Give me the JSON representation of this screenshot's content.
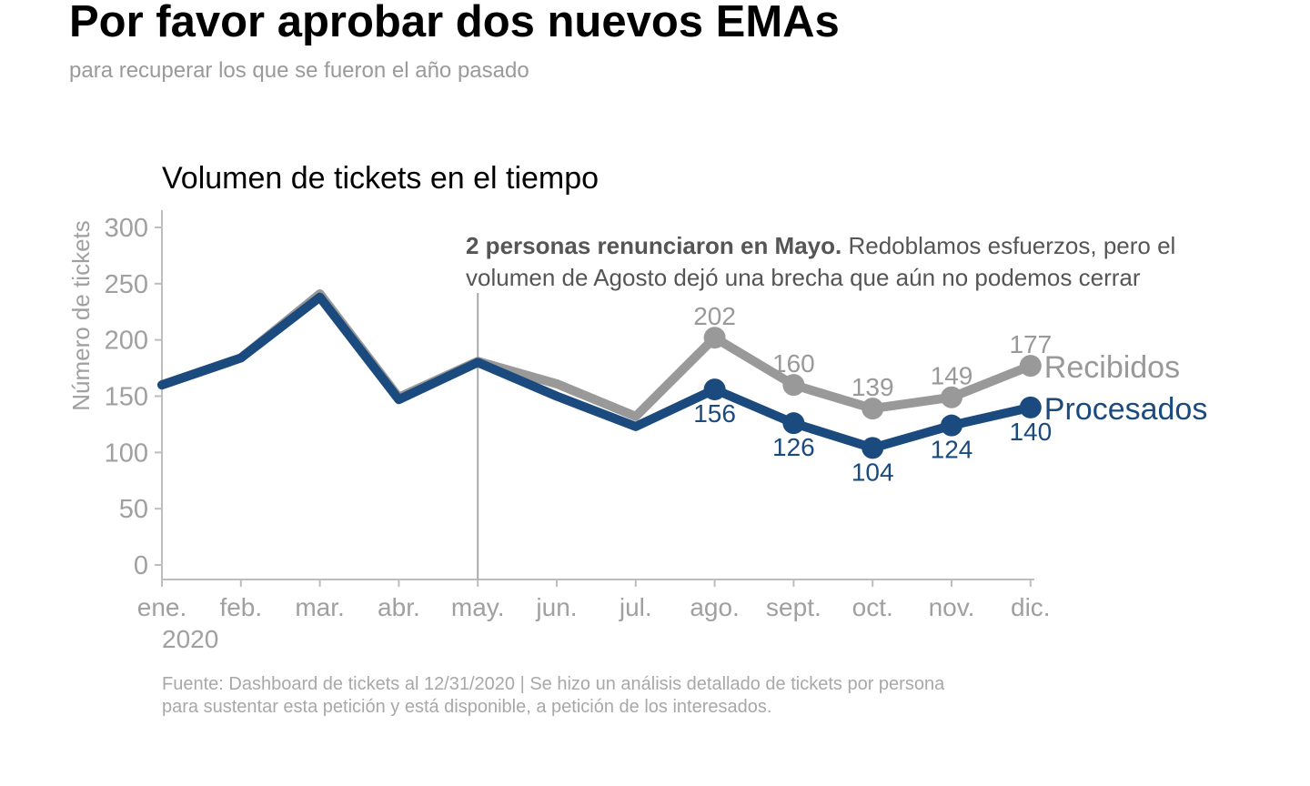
{
  "header": {
    "title": "Por favor aprobar dos nuevos EMAs",
    "subtitle": "para recuperar los que se fueron el año pasado"
  },
  "footer": {
    "source_line1": "Fuente: Dashboard de tickets al 12/31/2020 | Se hizo un análisis detallado de tickets por persona",
    "source_line2": "para sustentar esta petición y está disponible, a petición de los interesados."
  },
  "chart_data": {
    "type": "line",
    "title": "Volumen de tickets en el tiempo",
    "ylabel": "Número de tickets",
    "xlabel": "",
    "x": [
      "ene.",
      "feb.",
      "mar.",
      "abr.",
      "may.",
      "jun.",
      "jul.",
      "ago.",
      "sept.",
      "oct.",
      "nov.",
      "dic."
    ],
    "x_year_label": "2020",
    "ylim": [
      0,
      300
    ],
    "yticks": [
      0,
      50,
      100,
      150,
      200,
      250,
      300
    ],
    "grid": false,
    "series": [
      {
        "name": "Recibidos",
        "color": "#999999",
        "values": [
          160,
          184,
          241,
          149,
          181,
          161,
          132,
          202,
          160,
          139,
          149,
          177
        ],
        "labeled_from_index": 7
      },
      {
        "name": "Procesados",
        "color": "#1a4a7e",
        "values": [
          160,
          184,
          238,
          147,
          180,
          150,
          123,
          156,
          126,
          104,
          124,
          140
        ],
        "labeled_from_index": 7
      }
    ],
    "annotation": {
      "x": "may.",
      "bold_text": "2 personas renunciaron en Mayo.",
      "text_line1": " Redoblamos esfuerzos, pero el",
      "text_line2": "volumen de Agosto dejó una brecha que aún no podemos cerrar"
    }
  }
}
